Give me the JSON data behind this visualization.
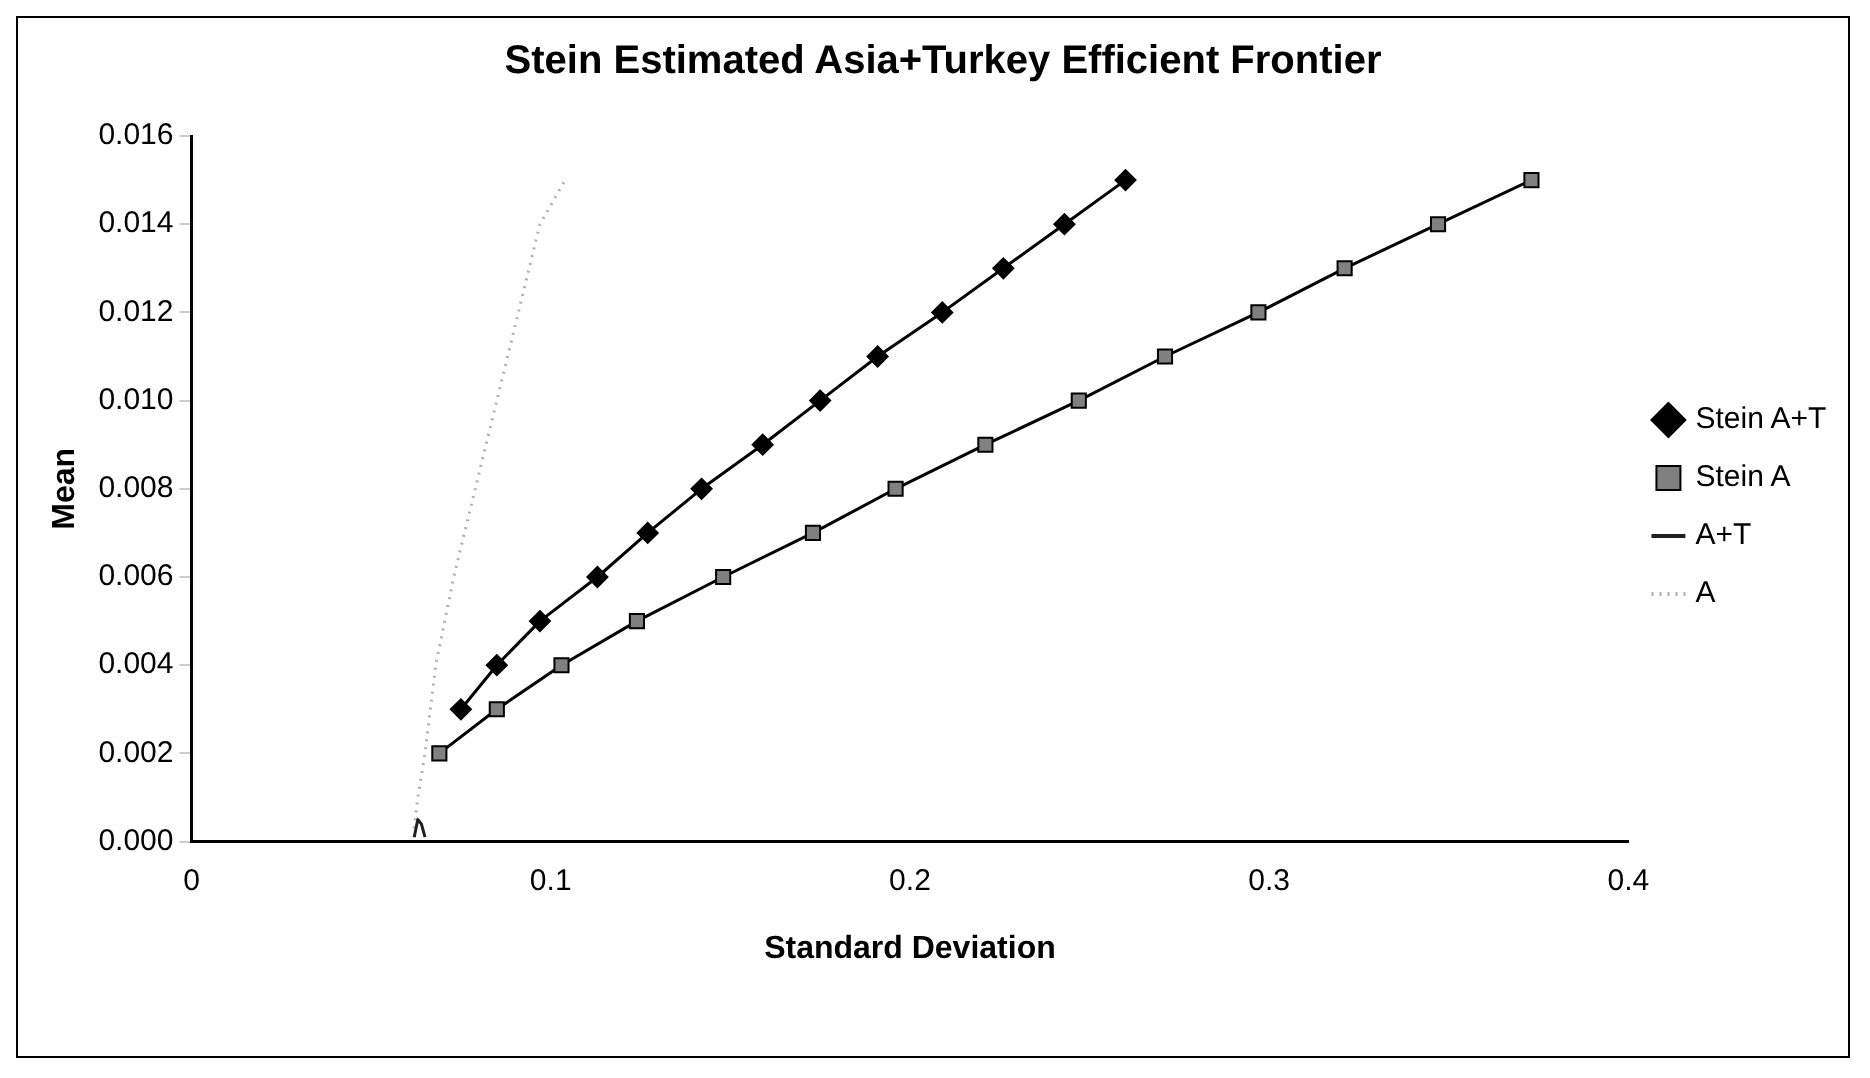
{
  "chart_data": {
    "type": "line",
    "title": "Stein Estimated Asia+Turkey Efficient Frontier",
    "xlabel": "Standard Deviation",
    "ylabel": "Mean",
    "xlim": [
      0,
      0.4
    ],
    "xticks": [
      0,
      0.1,
      0.2,
      0.3,
      0.4
    ],
    "ylim": [
      0,
      0.016
    ],
    "yticks": [
      {
        "value": 0,
        "label": "0.000"
      },
      {
        "value": 0.002,
        "label": "0.002"
      },
      {
        "value": 0.004,
        "label": "0.004"
      },
      {
        "value": 0.006,
        "label": "0.006"
      },
      {
        "value": 0.008,
        "label": "0.008"
      },
      {
        "value": 0.01,
        "label": "0.010"
      },
      {
        "value": 0.012,
        "label": "0.012"
      },
      {
        "value": 0.014,
        "label": "0.014"
      },
      {
        "value": 0.016,
        "label": "0.016"
      }
    ],
    "grid": false,
    "legend": "right",
    "series": [
      {
        "name": "Stein A+T",
        "color": "#000000",
        "marker": "diamond",
        "line_style": "solid",
        "x": [
          0.075,
          0.085,
          0.097,
          0.113,
          0.127,
          0.142,
          0.159,
          0.175,
          0.191,
          0.209,
          0.226,
          0.243,
          0.26
        ],
        "values": [
          0.003,
          0.004,
          0.005,
          0.006,
          0.007,
          0.008,
          0.009,
          0.01,
          0.011,
          0.012,
          0.013,
          0.014,
          0.015
        ]
      },
      {
        "name": "Stein A",
        "color": "#808080",
        "marker": "square",
        "line_style": "solid",
        "x": [
          0.069,
          0.085,
          0.103,
          0.124,
          0.148,
          0.173,
          0.196,
          0.221,
          0.247,
          0.271,
          0.297,
          0.321,
          0.347,
          0.373
        ],
        "values": [
          0.002,
          0.003,
          0.004,
          0.005,
          0.006,
          0.007,
          0.008,
          0.009,
          0.01,
          0.011,
          0.012,
          0.013,
          0.014,
          0.015
        ]
      },
      {
        "name": "A+T",
        "color": "#202020",
        "marker": "none",
        "line_style": "solid",
        "x": [
          0.062,
          0.063,
          0.064,
          0.065
        ],
        "values": [
          0.0001,
          0.0005,
          0.0004,
          0.0001
        ]
      },
      {
        "name": "A",
        "color": "#b0b0b0",
        "marker": "none",
        "line_style": "dotted",
        "x": [
          0.062,
          0.063,
          0.065,
          0.068,
          0.073,
          0.079,
          0.085,
          0.091,
          0.097,
          0.104
        ],
        "values": [
          0.0003,
          0.001,
          0.002,
          0.004,
          0.006,
          0.008,
          0.01,
          0.012,
          0.014,
          0.015
        ]
      }
    ]
  }
}
